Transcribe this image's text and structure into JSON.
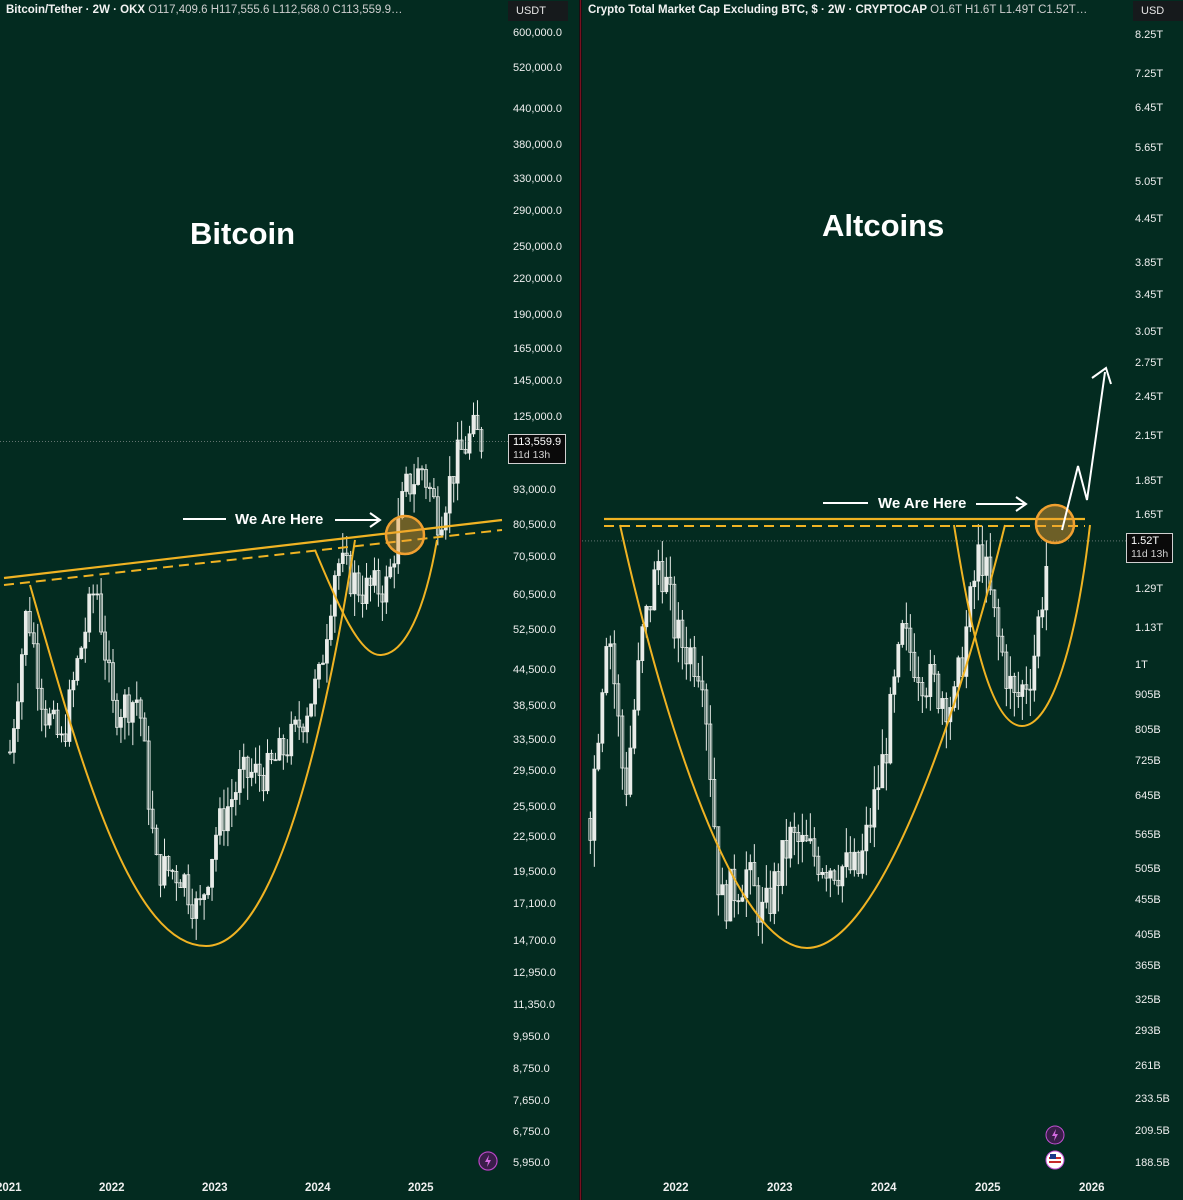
{
  "left": {
    "header": {
      "symbol": "Bitcoin/Tether · 2W · OKX",
      "ohlc": "O117,409.6  H117,555.6  L112,568.0  C113,559.9…"
    },
    "currency": "USDT",
    "title": "Bitcoin",
    "annotation": "We Are Here",
    "last_price": "113,559.9",
    "countdown": "11d 13h",
    "y_ticks": [
      "600,000.0",
      "520,000.0",
      "440,000.0",
      "380,000.0",
      "330,000.0",
      "290,000.0",
      "250,000.0",
      "220,000.0",
      "190,000.0",
      "165,000.0",
      "145,000.0",
      "125,000.0",
      "93,000.0",
      "80,500.0",
      "70,500.0",
      "60,500.0",
      "52,500.0",
      "44,500.0",
      "38,500.0",
      "33,500.0",
      "29,500.0",
      "25,500.0",
      "22,500.0",
      "19,500.0",
      "17,100.0",
      "14,700.0",
      "12,950.0",
      "11,350.0",
      "9,950.0",
      "8,750.0",
      "7,650.0",
      "6,750.0",
      "5,950.0"
    ],
    "x_ticks": [
      "2021",
      "2022",
      "2023",
      "2024",
      "2025"
    ]
  },
  "right": {
    "header": {
      "symbol": "Crypto Total Market Cap Excluding BTC, $ · 2W · CRYPTOCAP",
      "ohlc": "O1.6T  H1.6T  L1.49T  C1.52T…"
    },
    "currency": "USD",
    "title": "Altcoins",
    "annotation": "We Are Here",
    "last_price": "1.52T",
    "countdown": "11d 13h",
    "y_ticks": [
      "8.25T",
      "7.25T",
      "6.45T",
      "5.65T",
      "5.05T",
      "4.45T",
      "3.85T",
      "3.45T",
      "3.05T",
      "2.75T",
      "2.45T",
      "2.15T",
      "1.85T",
      "1.65T",
      "1.29T",
      "1.13T",
      "1T",
      "905B",
      "805B",
      "725B",
      "645B",
      "565B",
      "505B",
      "455B",
      "405B",
      "365B",
      "325B",
      "293B",
      "261B",
      "233.5B",
      "209.5B",
      "188.5B"
    ],
    "x_ticks": [
      "2022",
      "2023",
      "2024",
      "2025",
      "2026"
    ]
  },
  "colors": {
    "background": "#032b20",
    "pattern": "#f0b323",
    "candles": "#e9ece9",
    "highlight": "#f0a030",
    "divider": "#7a1020"
  },
  "chart_data": [
    {
      "type": "candlestick",
      "title": "Bitcoin",
      "series_name": "Bitcoin/Tether · 2W · OKX",
      "scale": "log",
      "ylim": [
        5950,
        600000
      ],
      "x_range": [
        "2021",
        "2025"
      ],
      "close_path": [
        {
          "x": "2021-01",
          "y": 32000
        },
        {
          "x": "2021-03",
          "y": 58000
        },
        {
          "x": "2021-05",
          "y": 38000
        },
        {
          "x": "2021-07",
          "y": 33000
        },
        {
          "x": "2021-09",
          "y": 47000
        },
        {
          "x": "2021-11",
          "y": 64000
        },
        {
          "x": "2022-01",
          "y": 38000
        },
        {
          "x": "2022-04",
          "y": 40000
        },
        {
          "x": "2022-06",
          "y": 20000
        },
        {
          "x": "2022-09",
          "y": 19500
        },
        {
          "x": "2022-11",
          "y": 16500
        },
        {
          "x": "2023-01",
          "y": 23000
        },
        {
          "x": "2023-04",
          "y": 29000
        },
        {
          "x": "2023-07",
          "y": 29500
        },
        {
          "x": "2023-10",
          "y": 34000
        },
        {
          "x": "2024-01",
          "y": 43000
        },
        {
          "x": "2024-03",
          "y": 70000
        },
        {
          "x": "2024-06",
          "y": 62000
        },
        {
          "x": "2024-09",
          "y": 63000
        },
        {
          "x": "2024-11",
          "y": 93000
        },
        {
          "x": "2025-01",
          "y": 102000
        },
        {
          "x": "2025-03",
          "y": 83000
        },
        {
          "x": "2025-05",
          "y": 105000
        },
        {
          "x": "2025-07",
          "y": 118000
        },
        {
          "x": "2025-08",
          "y": 113559.9
        }
      ],
      "annotations": [
        "Rounded bottom (cup) 2021–2024",
        "Handle 2024",
        "Rising neckline",
        "We Are Here"
      ],
      "last_value": 113559.9,
      "countdown": "11d 13h"
    },
    {
      "type": "candlestick",
      "title": "Altcoins",
      "series_name": "Crypto Total Market Cap Excluding BTC, $ · 2W · CRYPTOCAP",
      "scale": "log",
      "ylim": [
        188500000000.0,
        8250000000000.0
      ],
      "x_range": [
        "2021",
        "2026"
      ],
      "close_path": [
        {
          "x": "2021-03",
          "y": 600000000000.0
        },
        {
          "x": "2021-05",
          "y": 1200000000000.0
        },
        {
          "x": "2021-07",
          "y": 650000000000.0
        },
        {
          "x": "2021-09",
          "y": 1100000000000.0
        },
        {
          "x": "2021-11",
          "y": 1450000000000.0
        },
        {
          "x": "2022-01",
          "y": 1100000000000.0
        },
        {
          "x": "2022-04",
          "y": 1000000000000.0
        },
        {
          "x": "2022-06",
          "y": 450000000000.0
        },
        {
          "x": "2022-09",
          "y": 500000000000.0
        },
        {
          "x": "2022-11",
          "y": 430000000000.0
        },
        {
          "x": "2023-02",
          "y": 560000000000.0
        },
        {
          "x": "2023-06",
          "y": 520000000000.0
        },
        {
          "x": "2023-10",
          "y": 500000000000.0
        },
        {
          "x": "2024-01",
          "y": 750000000000.0
        },
        {
          "x": "2024-03",
          "y": 1100000000000.0
        },
        {
          "x": "2024-06",
          "y": 950000000000.0
        },
        {
          "x": "2024-09",
          "y": 880000000000.0
        },
        {
          "x": "2024-12",
          "y": 1500000000000.0
        },
        {
          "x": "2025-02",
          "y": 1100000000000.0
        },
        {
          "x": "2025-04",
          "y": 880000000000.0
        },
        {
          "x": "2025-06",
          "y": 1000000000000.0
        },
        {
          "x": "2025-08",
          "y": 1520000000000.0
        }
      ],
      "annotations": [
        "Rounded bottom (cup) 2021–2024",
        "Handle 2025",
        "Horizontal neckline at ~1.65T",
        "We Are Here",
        "Projected breakout arrow toward ~2.75T"
      ],
      "last_value": 1520000000000.0,
      "countdown": "11d 13h"
    }
  ]
}
